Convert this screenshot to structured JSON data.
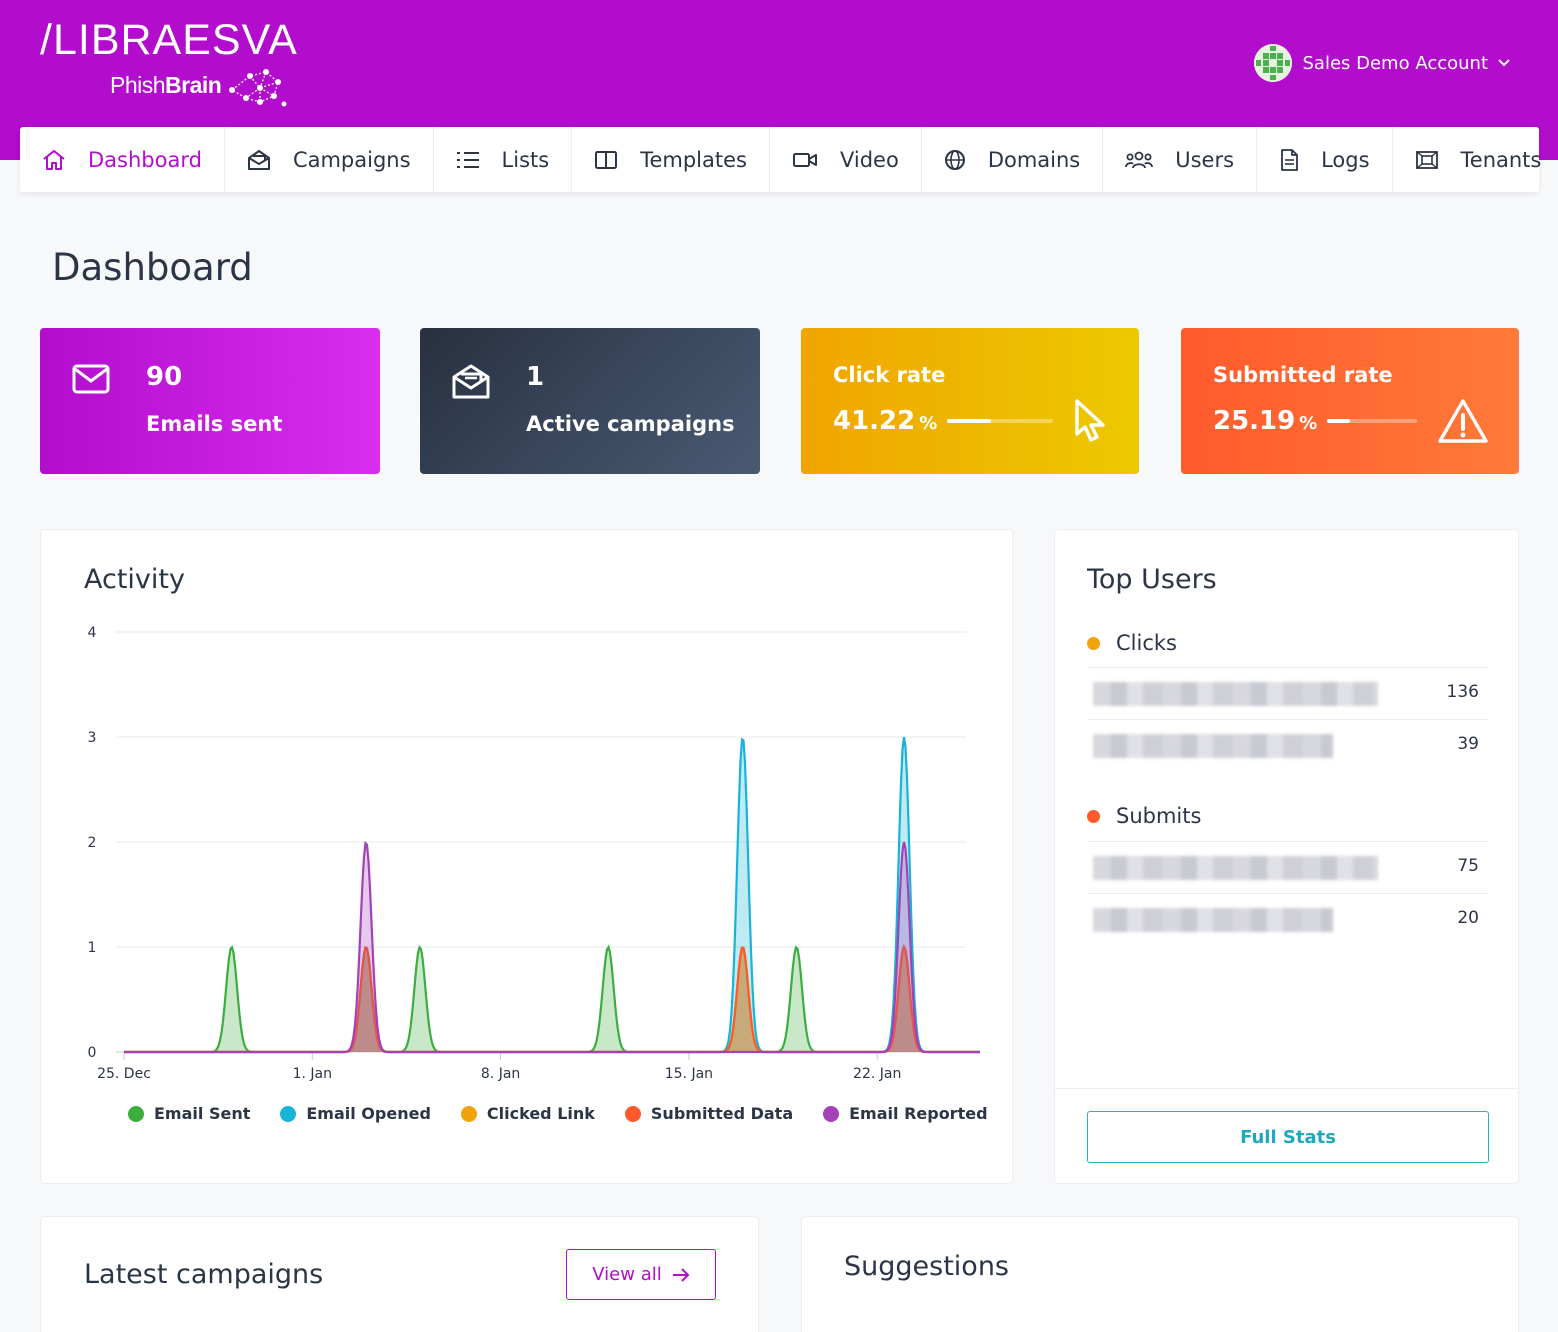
{
  "brand": {
    "name": "LIBRAESVA",
    "product_prefix": "Phish",
    "product_suffix": "Brain"
  },
  "account": {
    "name": "Sales Demo Account"
  },
  "nav": {
    "items": [
      {
        "label": "Dashboard",
        "icon": "home-icon",
        "active": true
      },
      {
        "label": "Campaigns",
        "icon": "envelope-open-icon",
        "active": false
      },
      {
        "label": "Lists",
        "icon": "list-icon",
        "active": false
      },
      {
        "label": "Templates",
        "icon": "columns-icon",
        "active": false
      },
      {
        "label": "Video",
        "icon": "video-icon",
        "active": false
      },
      {
        "label": "Domains",
        "icon": "globe-icon",
        "active": false
      },
      {
        "label": "Users",
        "icon": "users-icon",
        "active": false
      },
      {
        "label": "Logs",
        "icon": "document-icon",
        "active": false
      },
      {
        "label": "Tenants",
        "icon": "tenants-icon",
        "active": false
      }
    ]
  },
  "page": {
    "title": "Dashboard"
  },
  "stats": {
    "emails_sent": {
      "value": "90",
      "label": "Emails sent",
      "color": "#c21ee0"
    },
    "active_campaigns": {
      "value": "1",
      "label": "Active campaigns",
      "color": "#2f3d52"
    },
    "click_rate": {
      "title": "Click rate",
      "value": "41.22",
      "unit": "%",
      "fraction": 0.4122,
      "color": "#f0b000"
    },
    "submitted_rate": {
      "title": "Submitted rate",
      "value": "25.19",
      "unit": "%",
      "fraction": 0.2519,
      "color": "#ff6b35"
    }
  },
  "activity": {
    "title": "Activity",
    "chart_data": {
      "type": "area",
      "x_unit": "date",
      "x_range": [
        "25. Dec",
        "26. Jan"
      ],
      "xticks": [
        "25. Dec",
        "1. Jan",
        "8. Jan",
        "15. Jan",
        "22. Jan"
      ],
      "ylim": [
        0,
        4
      ],
      "yticks": [
        0,
        1,
        2,
        3,
        4
      ],
      "grid": true,
      "legend_position": "bottom",
      "series": [
        {
          "name": "Email Sent",
          "color": "#3cae3f",
          "points": [
            [
              "29. Dec",
              1
            ],
            [
              "3. Jan",
              1
            ],
            [
              "5. Jan",
              1
            ],
            [
              "12. Jan",
              1
            ],
            [
              "17. Jan",
              1
            ],
            [
              "19. Jan",
              1
            ],
            [
              "23. Jan",
              1
            ]
          ]
        },
        {
          "name": "Email Opened",
          "color": "#17b4d6",
          "points": [
            [
              "3. Jan",
              1
            ],
            [
              "17. Jan",
              3
            ],
            [
              "23. Jan",
              3
            ]
          ]
        },
        {
          "name": "Clicked Link",
          "color": "#f2a20c",
          "points": [
            [
              "3. Jan",
              1
            ],
            [
              "17. Jan",
              1
            ],
            [
              "23. Jan",
              1
            ]
          ]
        },
        {
          "name": "Submitted Data",
          "color": "#ff5a2c",
          "points": [
            [
              "3. Jan",
              1
            ],
            [
              "17. Jan",
              1
            ],
            [
              "23. Jan",
              1
            ]
          ]
        },
        {
          "name": "Email Reported",
          "color": "#a441b8",
          "points": [
            [
              "3. Jan",
              2
            ],
            [
              "23. Jan",
              2
            ]
          ]
        }
      ]
    }
  },
  "top_users": {
    "title": "Top Users",
    "clicks": {
      "label": "Clicks",
      "color": "#f2a20c",
      "rows": [
        {
          "value": "136"
        },
        {
          "value": "39"
        }
      ]
    },
    "submits": {
      "label": "Submits",
      "color": "#ff5a2c",
      "rows": [
        {
          "value": "75"
        },
        {
          "value": "20"
        }
      ]
    },
    "button": "Full Stats"
  },
  "latest_campaigns": {
    "title": "Latest campaigns",
    "button": "View all"
  },
  "suggestions": {
    "title": "Suggestions"
  }
}
